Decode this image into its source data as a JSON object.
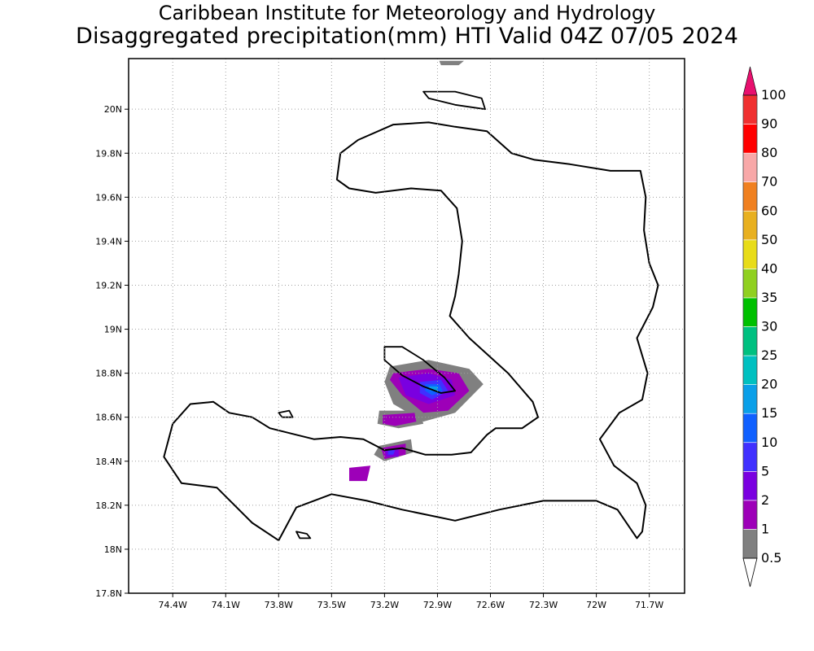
{
  "title": {
    "line1": "Caribbean Institute for Meteorology and Hydrology",
    "line2": "Disaggregated precipitation(mm) HTI Valid 04Z 07/05 2024"
  },
  "map": {
    "lon_range": [
      -74.65,
      -71.5
    ],
    "lat_range": [
      17.8,
      20.23
    ],
    "lat_ticks": [
      {
        "v": 20.0,
        "label": "20N"
      },
      {
        "v": 19.8,
        "label": "19.8N"
      },
      {
        "v": 19.6,
        "label": "19.6N"
      },
      {
        "v": 19.4,
        "label": "19.4N"
      },
      {
        "v": 19.2,
        "label": "19.2N"
      },
      {
        "v": 19.0,
        "label": "19N"
      },
      {
        "v": 18.8,
        "label": "18.8N"
      },
      {
        "v": 18.6,
        "label": "18.6N"
      },
      {
        "v": 18.4,
        "label": "18.4N"
      },
      {
        "v": 18.2,
        "label": "18.2N"
      },
      {
        "v": 18.0,
        "label": "18N"
      },
      {
        "v": 17.8,
        "label": "17.8N"
      }
    ],
    "lon_ticks": [
      {
        "v": -74.4,
        "label": "74.4W"
      },
      {
        "v": -74.1,
        "label": "74.1W"
      },
      {
        "v": -73.8,
        "label": "73.8W"
      },
      {
        "v": -73.5,
        "label": "73.5W"
      },
      {
        "v": -73.2,
        "label": "73.2W"
      },
      {
        "v": -72.9,
        "label": "72.9W"
      },
      {
        "v": -72.6,
        "label": "72.6W"
      },
      {
        "v": -72.3,
        "label": "72.3W"
      },
      {
        "v": -72.0,
        "label": "72W"
      },
      {
        "v": -71.7,
        "label": "71.7W"
      }
    ],
    "grid": true
  },
  "colorbar": {
    "bins": [
      {
        "label": "0.5",
        "color": "#ffffff"
      },
      {
        "label": "1",
        "color": "#808080"
      },
      {
        "label": "2",
        "color": "#9d00b8"
      },
      {
        "label": "5",
        "color": "#7a00e0"
      },
      {
        "label": "10",
        "color": "#4030ff"
      },
      {
        "label": "15",
        "color": "#1060ff"
      },
      {
        "label": "20",
        "color": "#0a9fe8"
      },
      {
        "label": "25",
        "color": "#00c0c0"
      },
      {
        "label": "30",
        "color": "#00c080"
      },
      {
        "label": "35",
        "color": "#00c000"
      },
      {
        "label": "40",
        "color": "#90d020"
      },
      {
        "label": "50",
        "color": "#e8dc18"
      },
      {
        "label": "60",
        "color": "#e8b020"
      },
      {
        "label": "70",
        "color": "#f08020"
      },
      {
        "label": "80",
        "color": "#f8a8a8"
      },
      {
        "label": "90",
        "color": "#ff0000"
      },
      {
        "label": "100",
        "color": "#f03030"
      }
    ],
    "top_arrow_color": "#e8106e"
  },
  "precip_areas": [
    {
      "category": "1",
      "color": "#808080",
      "ring": [
        [
          -73.17,
          18.83
        ],
        [
          -72.95,
          18.86
        ],
        [
          -72.72,
          18.82
        ],
        [
          -72.64,
          18.75
        ],
        [
          -72.8,
          18.62
        ],
        [
          -72.98,
          18.58
        ],
        [
          -73.15,
          18.66
        ],
        [
          -73.2,
          18.76
        ]
      ]
    },
    {
      "category": "1",
      "color": "#808080",
      "ring": [
        [
          -73.23,
          18.63
        ],
        [
          -73.0,
          18.63
        ],
        [
          -72.98,
          18.57
        ],
        [
          -73.12,
          18.55
        ],
        [
          -73.24,
          18.57
        ]
      ]
    },
    {
      "category": "1",
      "color": "#808080",
      "ring": [
        [
          -73.23,
          18.47
        ],
        [
          -73.05,
          18.5
        ],
        [
          -73.04,
          18.44
        ],
        [
          -73.2,
          18.4
        ],
        [
          -73.26,
          18.43
        ]
      ]
    },
    {
      "category": "1",
      "color": "#808080",
      "ring": [
        [
          -72.89,
          20.22
        ],
        [
          -72.75,
          20.22
        ],
        [
          -72.78,
          20.2
        ],
        [
          -72.88,
          20.2
        ]
      ]
    },
    {
      "category": "2",
      "color": "#9d00b8",
      "ring": [
        [
          -73.15,
          18.8
        ],
        [
          -72.95,
          18.82
        ],
        [
          -72.78,
          18.8
        ],
        [
          -72.72,
          18.72
        ],
        [
          -72.84,
          18.63
        ],
        [
          -72.98,
          18.62
        ],
        [
          -73.1,
          18.7
        ],
        [
          -73.17,
          18.77
        ]
      ]
    },
    {
      "category": "2",
      "color": "#9d00b8",
      "ring": [
        [
          -73.21,
          18.61
        ],
        [
          -73.03,
          18.62
        ],
        [
          -73.02,
          18.58
        ],
        [
          -73.14,
          18.56
        ],
        [
          -73.21,
          18.57
        ]
      ]
    },
    {
      "category": "2",
      "color": "#9d00b8",
      "ring": [
        [
          -73.22,
          18.46
        ],
        [
          -73.08,
          18.48
        ],
        [
          -73.08,
          18.43
        ],
        [
          -73.2,
          18.41
        ]
      ]
    },
    {
      "category": "2",
      "color": "#9d00b8",
      "ring": [
        [
          -73.4,
          18.37
        ],
        [
          -73.28,
          18.38
        ],
        [
          -73.3,
          18.31
        ],
        [
          -73.4,
          18.31
        ]
      ]
    },
    {
      "category": "5",
      "color": "#7a00e0",
      "ring": [
        [
          -73.12,
          18.78
        ],
        [
          -72.95,
          18.8
        ],
        [
          -72.82,
          18.77
        ],
        [
          -72.8,
          18.7
        ],
        [
          -72.95,
          18.66
        ],
        [
          -73.08,
          18.7
        ]
      ]
    },
    {
      "category": "5",
      "color": "#7a00e0",
      "ring": [
        [
          -73.2,
          18.45
        ],
        [
          -73.12,
          18.46
        ],
        [
          -73.12,
          18.42
        ],
        [
          -73.19,
          18.42
        ]
      ]
    },
    {
      "category": "10",
      "color": "#4030ff",
      "ring": [
        [
          -73.0,
          18.76
        ],
        [
          -72.88,
          18.77
        ],
        [
          -72.84,
          18.72
        ],
        [
          -72.93,
          18.68
        ],
        [
          -73.0,
          18.71
        ]
      ]
    },
    {
      "category": "10",
      "color": "#4030ff",
      "ring": [
        [
          -73.18,
          18.45
        ],
        [
          -73.14,
          18.45
        ],
        [
          -73.15,
          18.43
        ],
        [
          -73.18,
          18.43
        ]
      ]
    },
    {
      "category": "15",
      "color": "#1060ff",
      "ring": [
        [
          -72.97,
          18.75
        ],
        [
          -72.89,
          18.75
        ],
        [
          -72.87,
          18.72
        ],
        [
          -72.93,
          18.7
        ],
        [
          -72.97,
          18.72
        ]
      ]
    },
    {
      "category": "20",
      "color": "#0a9fe8",
      "ring": [
        [
          -72.95,
          18.74
        ],
        [
          -72.9,
          18.74
        ],
        [
          -72.9,
          18.72
        ],
        [
          -72.94,
          18.72
        ]
      ]
    }
  ],
  "land": [
    {
      "name": "Haiti mainland",
      "ring": [
        [
          -74.45,
          18.42
        ],
        [
          -74.4,
          18.57
        ],
        [
          -74.3,
          18.66
        ],
        [
          -74.17,
          18.67
        ],
        [
          -74.08,
          18.62
        ],
        [
          -73.95,
          18.6
        ],
        [
          -73.85,
          18.55
        ],
        [
          -73.7,
          18.52
        ],
        [
          -73.6,
          18.5
        ],
        [
          -73.45,
          18.51
        ],
        [
          -73.32,
          18.5
        ],
        [
          -73.2,
          18.45
        ],
        [
          -73.1,
          18.46
        ],
        [
          -72.97,
          18.43
        ],
        [
          -72.82,
          18.43
        ],
        [
          -72.71,
          18.44
        ],
        [
          -72.62,
          18.52
        ],
        [
          -72.57,
          18.55
        ],
        [
          -72.42,
          18.55
        ],
        [
          -72.33,
          18.6
        ],
        [
          -72.36,
          18.67
        ],
        [
          -72.5,
          18.8
        ],
        [
          -72.72,
          18.96
        ],
        [
          -72.83,
          19.06
        ],
        [
          -72.8,
          19.15
        ],
        [
          -72.78,
          19.25
        ],
        [
          -72.76,
          19.4
        ],
        [
          -72.79,
          19.55
        ],
        [
          -72.88,
          19.63
        ],
        [
          -73.05,
          19.64
        ],
        [
          -73.25,
          19.62
        ],
        [
          -73.4,
          19.64
        ],
        [
          -73.47,
          19.68
        ],
        [
          -73.45,
          19.8
        ],
        [
          -73.35,
          19.86
        ],
        [
          -73.15,
          19.93
        ],
        [
          -72.95,
          19.94
        ],
        [
          -72.8,
          19.92
        ],
        [
          -72.62,
          19.9
        ],
        [
          -72.48,
          19.8
        ],
        [
          -72.35,
          19.77
        ],
        [
          -72.15,
          19.75
        ],
        [
          -71.92,
          19.72
        ],
        [
          -71.75,
          19.72
        ],
        [
          -71.72,
          19.6
        ],
        [
          -71.73,
          19.45
        ],
        [
          -71.7,
          19.3
        ],
        [
          -71.65,
          19.2
        ],
        [
          -71.68,
          19.1
        ],
        [
          -71.77,
          18.96
        ],
        [
          -71.71,
          18.8
        ],
        [
          -71.74,
          18.68
        ],
        [
          -71.87,
          18.62
        ],
        [
          -71.98,
          18.5
        ],
        [
          -71.9,
          18.38
        ],
        [
          -71.77,
          18.3
        ],
        [
          -71.72,
          18.2
        ],
        [
          -71.74,
          18.08
        ],
        [
          -71.77,
          18.05
        ],
        [
          -71.88,
          18.18
        ],
        [
          -72.0,
          18.22
        ],
        [
          -72.3,
          18.22
        ],
        [
          -72.55,
          18.18
        ],
        [
          -72.8,
          18.13
        ],
        [
          -73.1,
          18.18
        ],
        [
          -73.3,
          18.22
        ],
        [
          -73.5,
          18.25
        ],
        [
          -73.7,
          18.19
        ],
        [
          -73.8,
          18.04
        ],
        [
          -73.95,
          18.12
        ],
        [
          -74.15,
          18.28
        ],
        [
          -74.35,
          18.3
        ]
      ]
    },
    {
      "name": "Ile de la Gonave",
      "ring": [
        [
          -73.2,
          18.92
        ],
        [
          -73.1,
          18.92
        ],
        [
          -72.98,
          18.86
        ],
        [
          -72.86,
          18.78
        ],
        [
          -72.8,
          18.72
        ],
        [
          -72.88,
          18.71
        ],
        [
          -72.98,
          18.74
        ],
        [
          -73.1,
          18.79
        ],
        [
          -73.2,
          18.86
        ]
      ]
    },
    {
      "name": "Ile de la Tortue",
      "ring": [
        [
          -72.98,
          20.08
        ],
        [
          -72.8,
          20.08
        ],
        [
          -72.65,
          20.05
        ],
        [
          -72.63,
          20.0
        ],
        [
          -72.8,
          20.02
        ],
        [
          -72.95,
          20.05
        ]
      ]
    },
    {
      "name": "Ile a Vache",
      "ring": [
        [
          -73.7,
          18.08
        ],
        [
          -73.64,
          18.07
        ],
        [
          -73.62,
          18.05
        ],
        [
          -73.68,
          18.05
        ]
      ]
    },
    {
      "name": "Grande Cayemite",
      "ring": [
        [
          -73.8,
          18.62
        ],
        [
          -73.74,
          18.63
        ],
        [
          -73.72,
          18.6
        ],
        [
          -73.78,
          18.6
        ]
      ]
    }
  ]
}
